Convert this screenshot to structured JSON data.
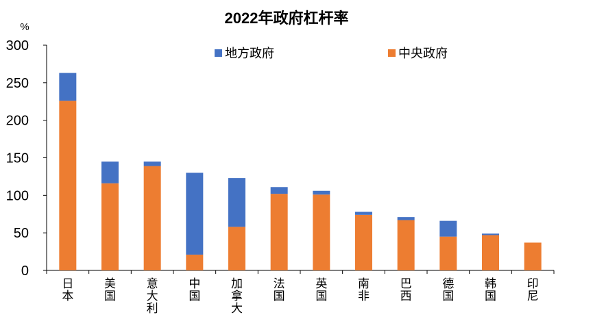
{
  "chart_data": {
    "type": "bar",
    "stacked": true,
    "title": "2022年政府杠杆率",
    "ylabel": "%",
    "ylim": [
      0,
      300
    ],
    "yticks": [
      0,
      50,
      100,
      150,
      200,
      250,
      300
    ],
    "grid": false,
    "legend": "top",
    "categories": [
      "日本",
      "美国",
      "意大利",
      "中国",
      "加拿大",
      "法国",
      "英国",
      "南非",
      "巴西",
      "德国",
      "韩国",
      "印尼"
    ],
    "series": [
      {
        "name": "中央政府",
        "color": "#ED7D31",
        "values": [
          226,
          116,
          139,
          21,
          58,
          102,
          101,
          74,
          67,
          45,
          47,
          37
        ]
      },
      {
        "name": "地方政府",
        "color": "#4472C4",
        "values": [
          37,
          29,
          6,
          109,
          65,
          9,
          5,
          4,
          4,
          21,
          2,
          0
        ]
      }
    ],
    "legend_order": [
      1,
      0
    ]
  }
}
